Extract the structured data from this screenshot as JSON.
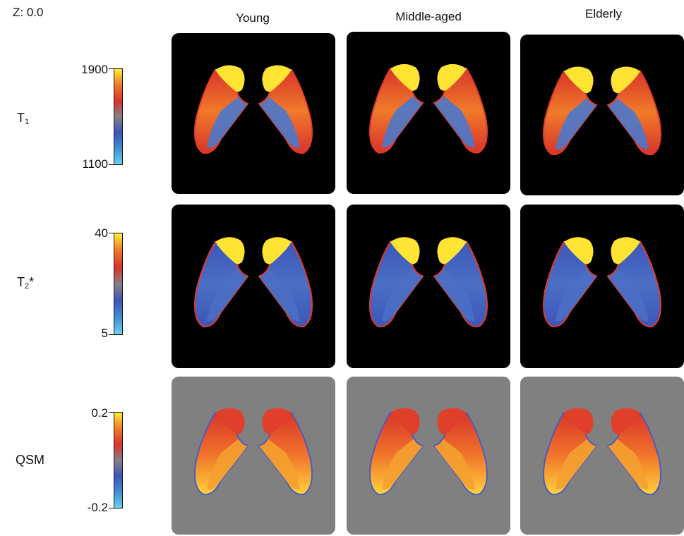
{
  "slice_label": "Z: 0.0",
  "columns": [
    "Young",
    "Middle-aged",
    "Elderly"
  ],
  "rows": [
    {
      "name_main": "T",
      "name_sub": "1",
      "name_suffix": "",
      "tick_top": "1900",
      "tick_bottom": "1100",
      "background": "black"
    },
    {
      "name_main": "T",
      "name_sub": "2",
      "name_suffix": "*",
      "tick_top": "40",
      "tick_bottom": "5",
      "background": "black"
    },
    {
      "name_main": "QSM",
      "name_sub": "",
      "name_suffix": "",
      "tick_top": "0.2",
      "tick_bottom": "-0.2",
      "background": "gray"
    }
  ],
  "colormap": [
    "#ffee33",
    "#f07a2a",
    "#d8342a",
    "#8a7f86",
    "#3d56b8",
    "#3f8fd0",
    "#6ad0f0"
  ],
  "colors": {
    "panel_black": "#000000",
    "panel_gray": "#808080"
  }
}
